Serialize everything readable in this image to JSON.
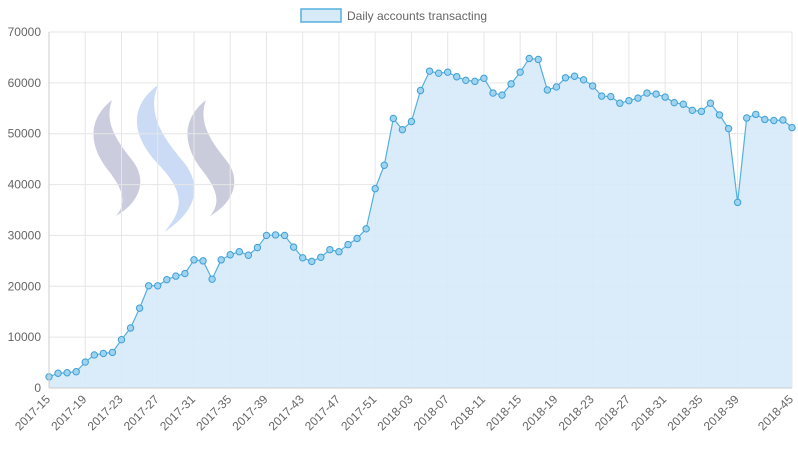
{
  "chart_data": {
    "type": "area",
    "legend": {
      "label": "Daily accounts transacting",
      "position": "top"
    },
    "colors": {
      "fill": "#d6eaf8",
      "stroke": "#55b0de",
      "point": "#9fd4f0",
      "point_stroke": "#3f9fd4",
      "grid": "#e6e6e6",
      "axis": "#cccccc",
      "text": "#666666"
    },
    "grid": true,
    "ylim": [
      0,
      70000
    ],
    "yticks": [
      "0",
      "10000",
      "20000",
      "30000",
      "40000",
      "50000",
      "60000",
      "70000"
    ],
    "xlim": [
      0,
      82
    ],
    "xticks": [
      {
        "i": 0,
        "label": "2017-15"
      },
      {
        "i": 4,
        "label": "2017-19"
      },
      {
        "i": 8,
        "label": "2017-23"
      },
      {
        "i": 12,
        "label": "2017-27"
      },
      {
        "i": 16,
        "label": "2017-31"
      },
      {
        "i": 20,
        "label": "2017-35"
      },
      {
        "i": 24,
        "label": "2017-39"
      },
      {
        "i": 28,
        "label": "2017-43"
      },
      {
        "i": 32,
        "label": "2017-47"
      },
      {
        "i": 36,
        "label": "2017-51"
      },
      {
        "i": 40,
        "label": "2018-03"
      },
      {
        "i": 44,
        "label": "2018-07"
      },
      {
        "i": 48,
        "label": "2018-11"
      },
      {
        "i": 52,
        "label": "2018-15"
      },
      {
        "i": 56,
        "label": "2018-19"
      },
      {
        "i": 60,
        "label": "2018-23"
      },
      {
        "i": 64,
        "label": "2018-27"
      },
      {
        "i": 68,
        "label": "2018-31"
      },
      {
        "i": 72,
        "label": "2018-35"
      },
      {
        "i": 76,
        "label": "2018-39"
      },
      {
        "i": 82,
        "label": "2018-45"
      }
    ],
    "series": [
      {
        "name": "Daily accounts transacting",
        "values": [
          2200,
          2900,
          3000,
          3200,
          5100,
          6500,
          6800,
          7000,
          9500,
          11800,
          15700,
          20100,
          20100,
          21300,
          22000,
          22500,
          25200,
          25000,
          21400,
          25200,
          26200,
          26800,
          26100,
          27600,
          30000,
          30100,
          30000,
          27700,
          25600,
          24900,
          25700,
          27200,
          26800,
          28200,
          29400,
          31300,
          39200,
          43800,
          53000,
          50800,
          52400,
          58500,
          62300,
          61900,
          62100,
          61200,
          60500,
          60300,
          60900,
          58000,
          57600,
          59800,
          62100,
          64800,
          64600,
          58600,
          59200,
          61000,
          61300,
          60600,
          59400,
          57400,
          57300,
          56000,
          56500,
          57000,
          58000,
          57800,
          57200,
          56100,
          55800,
          54600,
          54400,
          56000,
          53700,
          51000,
          36500,
          53100,
          53800,
          52800,
          52600,
          52700,
          51200
        ]
      }
    ]
  }
}
